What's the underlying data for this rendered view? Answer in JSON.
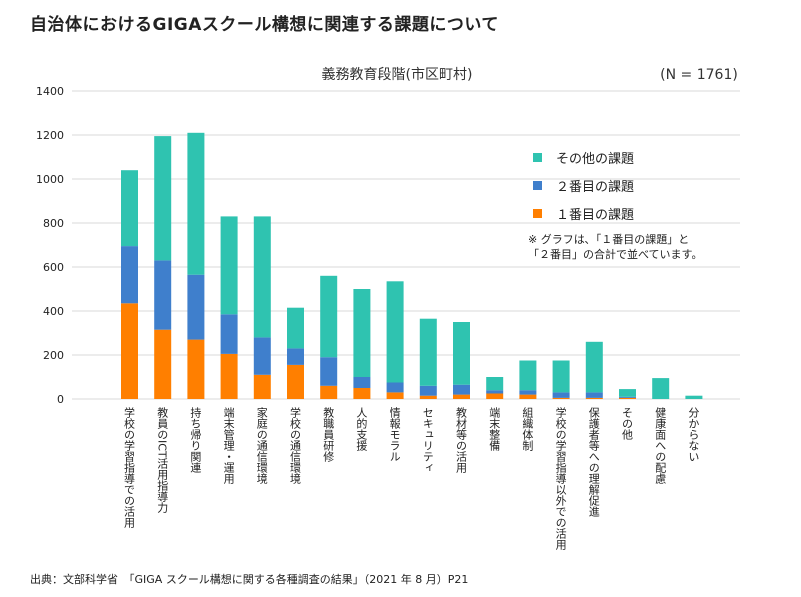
{
  "page": {
    "title": "自治体におけるGIGAスクール構想に関連する課題について",
    "note_line1": "※ グラフは､「１番目の課題」と",
    "note_line2": "「２番目」の合計で並べています。",
    "source": "出典：文部科学省　「GIGA スクール構想に関する各種調査の結果」（2021 年 8 月）P21"
  },
  "colors": {
    "first": "#ff7f00",
    "second": "#3f7fcc",
    "other": "#2fc3b0",
    "grid": "#d9d9d9",
    "axis_text": "#222222"
  },
  "chart_data": {
    "type": "bar",
    "stacked": true,
    "title": "義務教育段階(市区町村)",
    "n_label": "(N = 1761)",
    "ylim": [
      0,
      1400
    ],
    "yticks": [
      0,
      200,
      400,
      600,
      800,
      1000,
      1200,
      1400
    ],
    "grid": true,
    "legend_position": "top-right",
    "categories": [
      "学校の学習指導での活用",
      "教員のICT活用指導力",
      "持ち帰り関連",
      "端末管理・運用",
      "家庭の通信環境",
      "学校の通信環境",
      "教職員研修",
      "人的支援",
      "情報モラル",
      "セキュリティ",
      "教材等の活用",
      "端末整備",
      "組織体制",
      "学校の学習指導以外での活用",
      "保護者等への理解促進",
      "その他",
      "健康面への配慮",
      "分からない"
    ],
    "series": [
      {
        "name": "１番目の課題",
        "color_key": "first",
        "values": [
          435,
          315,
          270,
          205,
          110,
          155,
          60,
          50,
          30,
          15,
          20,
          25,
          20,
          5,
          5,
          5,
          0,
          0
        ]
      },
      {
        "name": "２番目の課題",
        "color_key": "second",
        "values": [
          260,
          315,
          295,
          180,
          170,
          75,
          130,
          50,
          45,
          45,
          45,
          15,
          20,
          25,
          25,
          5,
          0,
          0
        ]
      },
      {
        "name": "その他の課題",
        "color_key": "other",
        "values": [
          345,
          565,
          645,
          445,
          550,
          185,
          370,
          400,
          460,
          305,
          285,
          60,
          135,
          145,
          230,
          35,
          95,
          15
        ]
      }
    ],
    "legend_order": [
      "その他の課題",
      "２番目の課題",
      "１番目の課題"
    ]
  }
}
